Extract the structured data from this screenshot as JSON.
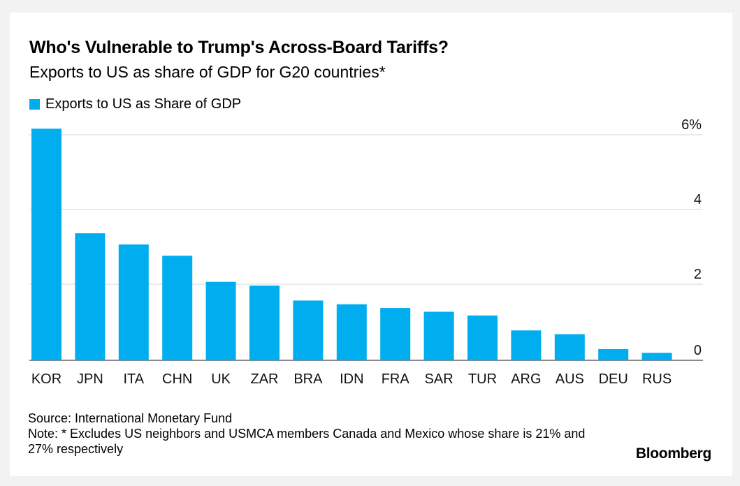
{
  "chart_data": {
    "type": "bar",
    "title": "Who's Vulnerable to Trump's Across-Board Tariffs?",
    "subtitle": "Exports to US as share of GDP for G20 countries*",
    "legend": "Exports to US as Share of GDP",
    "categories": [
      "KOR",
      "JPN",
      "ITA",
      "CHN",
      "UK",
      "ZAR",
      "BRA",
      "IDN",
      "FRA",
      "SAR",
      "TUR",
      "ARG",
      "AUS",
      "DEU",
      "RUS"
    ],
    "values": [
      6.2,
      3.4,
      3.1,
      2.8,
      2.1,
      2.0,
      1.6,
      1.5,
      1.4,
      1.3,
      1.2,
      0.8,
      0.7,
      0.3,
      0.2
    ],
    "yticks": [
      "0",
      "2",
      "4",
      "6%"
    ],
    "ylim": [
      0,
      6.5
    ],
    "xlabel": "",
    "ylabel": "",
    "color": "#00aeef",
    "grid": true
  },
  "footer": {
    "source": "Source: International Monetary Fund",
    "note": "Note: * Excludes US neighbors and USMCA members Canada and Mexico whose share is 21% and 27% respectively"
  },
  "brand": "Bloomberg"
}
